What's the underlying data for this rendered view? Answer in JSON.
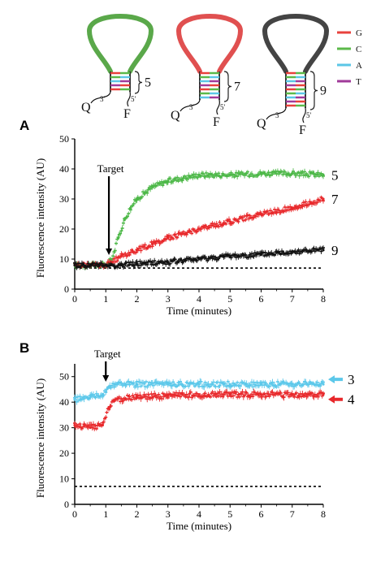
{
  "hairpins": [
    {
      "loop_color": "#5aa84a",
      "stem_label": "5",
      "pairs": 5,
      "q_label": "Q",
      "f_label": "F",
      "end3": "3′",
      "end5": "5′"
    },
    {
      "loop_color": "#e05050",
      "stem_label": "7",
      "pairs": 7,
      "q_label": "Q",
      "f_label": "F",
      "end3": "3′",
      "end5": "5′"
    },
    {
      "loop_color": "#444444",
      "stem_label": "9",
      "pairs": 9,
      "q_label": "Q",
      "f_label": "F",
      "end3": "3′",
      "end5": "5′"
    }
  ],
  "base_legend": [
    {
      "label": "G",
      "color": "#e8413c"
    },
    {
      "label": "C",
      "color": "#5bb94a"
    },
    {
      "label": "A",
      "color": "#5bc6e6"
    },
    {
      "label": "T",
      "color": "#a03a9a"
    }
  ],
  "chart_data": [
    {
      "panel": "A",
      "type": "scatter",
      "xlabel": "Time (minutes)",
      "ylabel": "Fluorescence intensity (AU)",
      "xlim": [
        0,
        8
      ],
      "ylim": [
        0,
        50
      ],
      "xticks": [
        "0",
        "1",
        "2",
        "3",
        "4",
        "5",
        "6",
        "7",
        "8"
      ],
      "yticks": [
        "0",
        "10",
        "20",
        "30",
        "40",
        "50"
      ],
      "annotation": {
        "text": "Target",
        "x": 1.1
      },
      "baseline": 7,
      "series": [
        {
          "name": "5",
          "color": "#4db848",
          "x": [
            0,
            0.5,
            1.0,
            1.2,
            1.4,
            1.6,
            1.8,
            2,
            2.5,
            3,
            3.5,
            4,
            5,
            6,
            7,
            8
          ],
          "y": [
            8,
            8,
            8,
            10,
            17,
            23,
            27,
            30,
            34,
            36,
            37,
            38,
            38,
            38.5,
            38.5,
            38
          ]
        },
        {
          "name": "7",
          "color": "#e8282b",
          "x": [
            0,
            0.5,
            1.0,
            1.2,
            1.5,
            2,
            2.5,
            3,
            4,
            5,
            6,
            7,
            8
          ],
          "y": [
            8,
            8,
            8,
            9,
            11,
            13,
            15,
            17,
            20,
            22.5,
            25,
            27,
            30
          ]
        },
        {
          "name": "9",
          "color": "#111111",
          "x": [
            0,
            0.5,
            1.0,
            1.5,
            2,
            3,
            4,
            5,
            6,
            7,
            8
          ],
          "y": [
            8,
            8,
            8,
            8,
            8.5,
            9,
            10,
            11,
            11.5,
            12.5,
            13
          ]
        }
      ]
    },
    {
      "panel": "B",
      "type": "scatter",
      "xlabel": "Time (minutes)",
      "ylabel": "Fluorescence intensity (AU)",
      "xlim": [
        0,
        8
      ],
      "ylim": [
        0,
        55
      ],
      "xticks": [
        "0",
        "1",
        "2",
        "3",
        "4",
        "5",
        "6",
        "7",
        "8"
      ],
      "yticks": [
        "0",
        "10",
        "20",
        "30",
        "40",
        "50"
      ],
      "annotation": {
        "text": "Target",
        "x": 1.0
      },
      "baseline": 7,
      "series": [
        {
          "name": "3",
          "color": "#5cc8ea",
          "x": [
            0,
            0.5,
            0.9,
            1.1,
            1.3,
            2,
            3,
            4,
            5,
            6,
            7,
            8
          ],
          "y": [
            41,
            42,
            43,
            46,
            47,
            47,
            47,
            47,
            47,
            47,
            47,
            47
          ]
        },
        {
          "name": "4",
          "color": "#e8282b",
          "x": [
            0,
            0.5,
            0.9,
            1.1,
            1.3,
            2,
            3,
            4,
            5,
            6,
            7,
            8
          ],
          "y": [
            31,
            30,
            31,
            38,
            41,
            42,
            42.5,
            43,
            43,
            43,
            43,
            43
          ]
        }
      ]
    }
  ],
  "panel_labels": [
    "A",
    "B"
  ]
}
